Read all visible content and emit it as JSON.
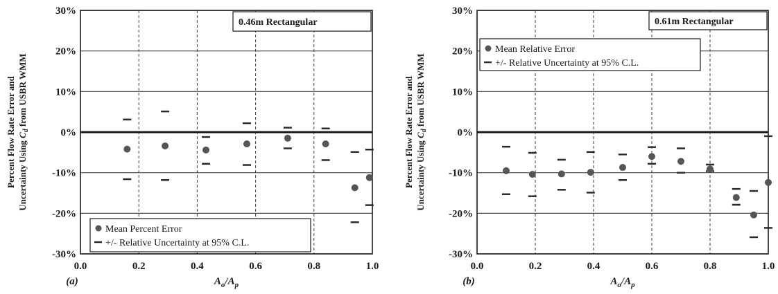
{
  "chart_data": [
    {
      "type": "scatter",
      "panel_label": "(a)",
      "title": "0.46m Rectangular",
      "xlabel": "A_o/A_p",
      "xlabel_main": "A",
      "xlabel_sub1": "o",
      "xlabel_slash": "/A",
      "xlabel_sub2": "p",
      "ylabel_line1": "Percent Flow Rate Error and",
      "ylabel_line2_pre": "Uncertainty Using ",
      "ylabel_line2_c": "C",
      "ylabel_line2_sub": "d",
      "ylabel_line2_post": " from USBR WMM",
      "xlim": [
        0.0,
        1.0
      ],
      "ylim": [
        -30,
        30
      ],
      "x_ticks": [
        "0.0",
        "0.2",
        "0.4",
        "0.6",
        "0.8",
        "1.0"
      ],
      "y_ticks": [
        "30%",
        "20%",
        "10%",
        "0%",
        "-10%",
        "-20%",
        "-30%"
      ],
      "legend_position": "bottom-left",
      "legend": {
        "mean": "Mean Percent Error",
        "uncertainty": "+/- Relative Uncertainty at 95% C.L."
      },
      "series": [
        {
          "name": "Mean Percent Error",
          "marker": "circle",
          "x": [
            0.16,
            0.29,
            0.43,
            0.57,
            0.71,
            0.84,
            0.94,
            0.99
          ],
          "y": [
            -4.2,
            -3.4,
            -4.4,
            -2.9,
            -1.5,
            -2.9,
            -13.7,
            -11.2
          ]
        },
        {
          "name": "+/- Relative Uncertainty at 95% C.L.",
          "marker": "dash",
          "x": [
            0.16,
            0.29,
            0.43,
            0.57,
            0.71,
            0.84,
            0.94,
            0.99
          ],
          "upper": [
            3.1,
            5.1,
            -1.2,
            2.2,
            1.1,
            0.9,
            -4.9,
            -4.3
          ],
          "lower": [
            -11.6,
            -11.8,
            -7.8,
            -8.1,
            -4.0,
            -6.9,
            -22.2,
            -18.0
          ]
        }
      ]
    },
    {
      "type": "scatter",
      "panel_label": "(b)",
      "title": "0.61m Rectangular",
      "xlabel": "A_o/A_p",
      "xlabel_main": "A",
      "xlabel_sub1": "o",
      "xlabel_slash": "/A",
      "xlabel_sub2": "p",
      "ylabel_line1": "Percent Flow Rate Error and",
      "ylabel_line2_pre": "Uncertainty Using ",
      "ylabel_line2_c": "C",
      "ylabel_line2_sub": "d",
      "ylabel_line2_post": " from USBR WMM",
      "xlim": [
        0.0,
        1.0
      ],
      "ylim": [
        -30,
        30
      ],
      "x_ticks": [
        "0.0",
        "0.2",
        "0.4",
        "0.6",
        "0.8",
        "1.0"
      ],
      "y_ticks": [
        "30%",
        "20%",
        "10%",
        "0%",
        "-10%",
        "-20%",
        "-30%"
      ],
      "legend_position": "top-left",
      "legend": {
        "mean": "Mean Relative Error",
        "uncertainty": "+/- Relative Uncertainty at 95% C.L."
      },
      "series": [
        {
          "name": "Mean Relative Error",
          "marker": "circle",
          "x": [
            0.1,
            0.19,
            0.29,
            0.39,
            0.5,
            0.6,
            0.7,
            0.8,
            0.89,
            0.95,
            1.0
          ],
          "y": [
            -9.5,
            -10.4,
            -10.3,
            -9.9,
            -8.7,
            -6.0,
            -7.2,
            -9.1,
            -16.1,
            -20.4,
            -12.4
          ]
        },
        {
          "name": "+/- Relative Uncertainty at 95% C.L.",
          "marker": "dash",
          "x": [
            0.1,
            0.19,
            0.29,
            0.39,
            0.5,
            0.6,
            0.7,
            0.8,
            0.89,
            0.95,
            1.0
          ],
          "upper": [
            -3.6,
            -5.1,
            -6.8,
            -4.9,
            -5.5,
            -3.7,
            -4.0,
            -8.0,
            -14.0,
            -14.5,
            -1.0
          ],
          "lower": [
            -15.3,
            -15.8,
            -14.2,
            -14.9,
            -11.8,
            -7.8,
            -10.0,
            -9.6,
            -17.9,
            -25.9,
            -23.6
          ]
        }
      ]
    }
  ]
}
